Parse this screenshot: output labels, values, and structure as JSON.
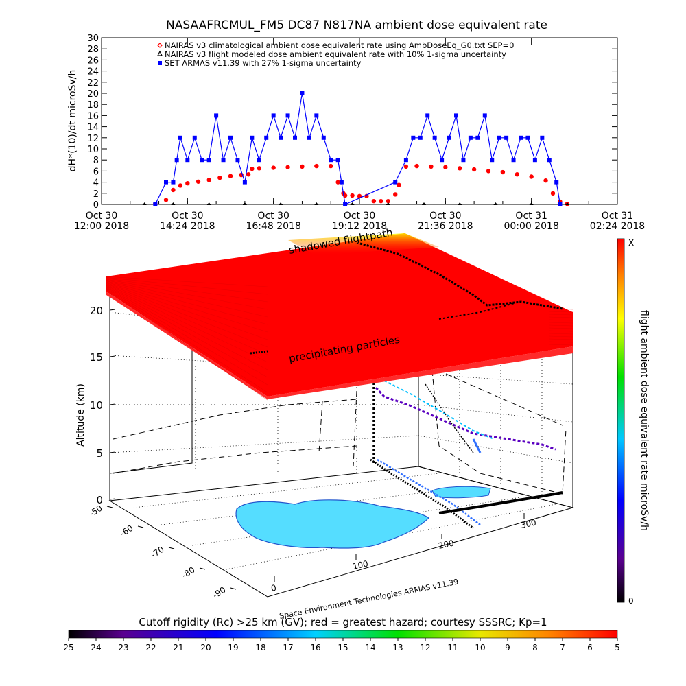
{
  "chart_data": [
    {
      "type": "scatter",
      "title": "NASAAFRCMUL_FM5 DC87 N817NA ambient dose equivalent rate",
      "ylabel": "dH*(10)/dt microSv/h",
      "ylim": [
        0,
        30
      ],
      "yticks": [
        0,
        2,
        4,
        6,
        8,
        10,
        12,
        14,
        16,
        18,
        20,
        22,
        24,
        26,
        28,
        30
      ],
      "xlim_hours": [
        0,
        14.4
      ],
      "xticks": [
        {
          "h": 0.0,
          "line1": "Oct 30",
          "line2": "12:00 2018"
        },
        {
          "h": 2.4,
          "line1": "Oct 30",
          "line2": "14:24 2018"
        },
        {
          "h": 4.8,
          "line1": "Oct 30",
          "line2": "16:48 2018"
        },
        {
          "h": 7.2,
          "line1": "Oct 30",
          "line2": "19:12 2018"
        },
        {
          "h": 9.6,
          "line1": "Oct 30",
          "line2": "21:36 2018"
        },
        {
          "h": 12.0,
          "line1": "Oct 31",
          "line2": "00:00 2018"
        },
        {
          "h": 14.4,
          "line1": "Oct 31",
          "line2": "02:24 2018"
        }
      ],
      "legend": [
        {
          "label": "NAIRAS v3 climatological ambient dose equivalent rate using AmbDoseEq_G0.txt SEP=0",
          "color": "#ff0000",
          "marker": "diamond"
        },
        {
          "label": "NAIRAS v3 flight modeled dose ambient equivalent rate with 10% 1-sigma uncertainty",
          "color": "#000000",
          "marker": "triangle"
        },
        {
          "label": "SET ARMAS v11.39 with 27% 1-sigma uncertainty",
          "color": "#0000ff",
          "marker": "square"
        }
      ],
      "series": [
        {
          "name": "NAIRAS v3 climatological ambient dose equivalent rate using AmbDoseEq_G0.txt SEP=0",
          "color": "#ff0000",
          "x": [
            1.5,
            1.8,
            2.0,
            2.2,
            2.4,
            2.7,
            3.0,
            3.3,
            3.6,
            3.9,
            4.1,
            4.2,
            4.4,
            4.8,
            5.2,
            5.6,
            6.0,
            6.4,
            6.6,
            6.75,
            6.8,
            7.0,
            7.2,
            7.4,
            7.6,
            7.8,
            8.0,
            8.2,
            8.3,
            8.5,
            8.8,
            9.2,
            9.6,
            10.0,
            10.4,
            10.8,
            11.2,
            11.6,
            12.0,
            12.4,
            12.6,
            12.8,
            13.0
          ],
          "y": [
            0.1,
            0.8,
            2.6,
            3.4,
            3.8,
            4.1,
            4.4,
            4.8,
            5.1,
            5.3,
            5.4,
            6.4,
            6.5,
            6.6,
            6.7,
            6.8,
            6.9,
            6.9,
            4.0,
            2.0,
            1.6,
            1.6,
            1.5,
            1.5,
            0.6,
            0.6,
            0.6,
            1.8,
            3.5,
            6.8,
            6.9,
            6.8,
            6.7,
            6.5,
            6.3,
            6.0,
            5.8,
            5.4,
            5.0,
            4.3,
            2.0,
            0.5,
            0.1
          ]
        },
        {
          "name": "NAIRAS v3 flight modeled dose ambient equivalent rate with 10% 1-sigma uncertainty",
          "color": "#000000",
          "x": [
            1.2,
            2.0,
            3.0,
            4.0,
            5.0,
            6.0,
            7.0,
            8.0,
            9.0,
            10.0,
            11.0,
            12.0,
            13.0
          ],
          "y": [
            0,
            0,
            0,
            0,
            0,
            0,
            0,
            0,
            0,
            0,
            0,
            0,
            0
          ]
        },
        {
          "name": "SET ARMAS v11.39 with 27% 1-sigma uncertainty",
          "color": "#0000ff",
          "x": [
            1.5,
            1.8,
            2.0,
            2.1,
            2.2,
            2.4,
            2.6,
            2.8,
            3.0,
            3.2,
            3.4,
            3.6,
            3.8,
            4.0,
            4.2,
            4.4,
            4.6,
            4.8,
            5.0,
            5.2,
            5.4,
            5.6,
            5.8,
            6.0,
            6.2,
            6.4,
            6.6,
            6.7,
            6.8,
            8.2,
            8.5,
            8.7,
            8.9,
            9.1,
            9.3,
            9.5,
            9.7,
            9.9,
            10.1,
            10.3,
            10.5,
            10.7,
            10.9,
            11.1,
            11.3,
            11.5,
            11.7,
            11.9,
            12.1,
            12.3,
            12.5,
            12.7,
            12.8
          ],
          "y": [
            0,
            4,
            4,
            8,
            12,
            8,
            12,
            8,
            8,
            16,
            8,
            12,
            8,
            4,
            12,
            8,
            12,
            16,
            12,
            16,
            12,
            20,
            12,
            16,
            12,
            8,
            8,
            4,
            0,
            4,
            8,
            12,
            12,
            16,
            12,
            8,
            12,
            16,
            8,
            12,
            12,
            16,
            8,
            12,
            12,
            8,
            12,
            12,
            8,
            12,
            8,
            4,
            0
          ]
        }
      ]
    },
    {
      "type": "scatter",
      "subtype": "3d-flight-path",
      "zlabel": "Altitude (km)",
      "zticks": [
        0,
        5,
        10,
        15,
        20
      ],
      "y_ticks": [
        -50,
        -60,
        -70,
        -80,
        -90
      ],
      "x_ticks": [
        0,
        100,
        200,
        300
      ],
      "annotations": [
        "shadowed flightpath",
        "precipitating particles"
      ],
      "credit": "Space Environment Technologies ARMAS v11.39",
      "colorbar": {
        "label": "flight ambient dose equivalent rate microSv/h",
        "top_label": "X",
        "bottom_label": "0"
      },
      "rc_bar": {
        "title": "Cutoff rigidity (Rc) >25 km (GV); red = greatest hazard; courtesy SSSRC; Kp=1",
        "ticks": [
          "25",
          "24",
          "23",
          "22",
          "21",
          "20",
          "19",
          "18",
          "17",
          "16",
          "15",
          "14",
          "13",
          "12",
          "11",
          "10",
          "9",
          "8",
          "7",
          "6",
          "5"
        ]
      }
    }
  ]
}
